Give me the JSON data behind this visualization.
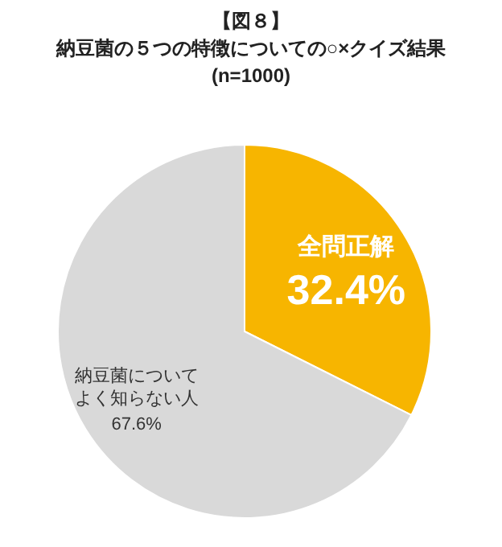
{
  "chart_data": {
    "type": "pie",
    "title": "【図８】",
    "subtitle": "納豆菌の５つの特徴についての○×クイズ結果",
    "annotations": [
      "(n=1000)"
    ],
    "categories": [
      "全問正解",
      "納豆菌についてよく知らない人"
    ],
    "values": [
      32.4,
      67.6
    ],
    "colors": [
      "#f7b500",
      "#d9d9d9"
    ],
    "value_labels": [
      "32.4%",
      "67.6%"
    ]
  }
}
